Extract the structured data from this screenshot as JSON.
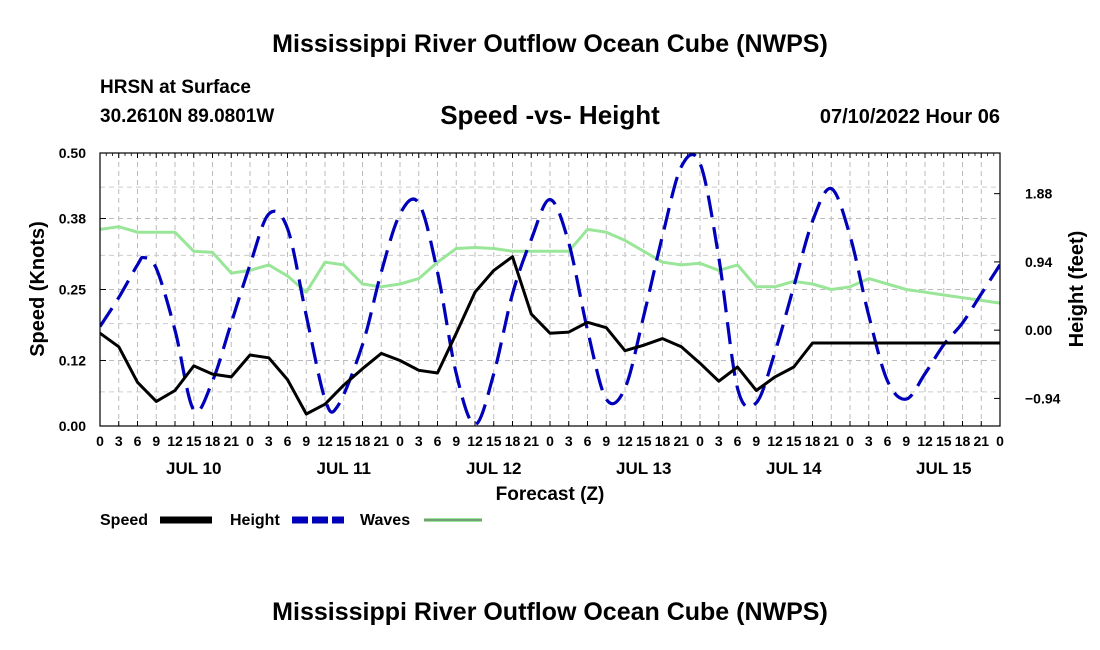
{
  "header": {
    "main_title": "Mississippi River Outflow Ocean Cube (NWPS)",
    "station_name": "HRSN at Surface",
    "station_coords": "30.2610N  89.0801W",
    "chart_title": "Speed -vs- Height",
    "run_time": "07/10/2022 Hour 06"
  },
  "footer": {
    "bottom_title": "Mississippi River Outflow Ocean Cube (NWPS)"
  },
  "chart_data": {
    "type": "line",
    "title": "Speed -vs- Height",
    "xlabel": "Forecast (Z)",
    "ylabel": "Speed (Knots)",
    "y2label": "Height (feet)",
    "xlim": [
      0,
      144
    ],
    "ylim": [
      0,
      0.5
    ],
    "y2lim": [
      -1.32,
      2.44
    ],
    "grid": true,
    "x_tick_labels": [
      "0",
      "3",
      "6",
      "9",
      "12",
      "15",
      "18",
      "21",
      "0",
      "3",
      "6",
      "9",
      "12",
      "15",
      "18",
      "21",
      "0",
      "3",
      "6",
      "9",
      "12",
      "15",
      "18",
      "21",
      "0",
      "3",
      "6",
      "9",
      "12",
      "15",
      "18",
      "21",
      "0",
      "3",
      "6",
      "9",
      "12",
      "15",
      "18",
      "21",
      "0",
      "3",
      "6",
      "9",
      "12",
      "15",
      "18",
      "21",
      "0"
    ],
    "day_labels": [
      "JUL 10",
      "JUL 11",
      "JUL 12",
      "JUL 13",
      "JUL 14",
      "JUL 15"
    ],
    "y_ticks": [
      0.0,
      0.12,
      0.25,
      0.38,
      0.5
    ],
    "y_tick_labels": [
      "0.00",
      "0.12",
      "0.25",
      "0.38",
      "0.50"
    ],
    "y2_ticks": [
      -0.94,
      0.0,
      0.94,
      1.88
    ],
    "y2_tick_labels": [
      "−0.94",
      "0.00",
      "0.94",
      "1.88"
    ],
    "legend": {
      "position": "bottom-left",
      "items": [
        {
          "name": "Speed",
          "color": "#000000",
          "dash": "solid"
        },
        {
          "name": "Height",
          "color": "#0000bb",
          "dash": "dashed"
        },
        {
          "name": "Waves",
          "color": "#99e699",
          "dash": "solid"
        }
      ]
    },
    "series": [
      {
        "name": "Speed",
        "axis": "left",
        "color": "#000000",
        "x": [
          0,
          3,
          6,
          9,
          12,
          15,
          18,
          21,
          24,
          27,
          30,
          33,
          36,
          39,
          42,
          45,
          48,
          51,
          54,
          57,
          60,
          63,
          66,
          69,
          72,
          75,
          78,
          81,
          84,
          87,
          90,
          93,
          96,
          99,
          102,
          105,
          108,
          111,
          114,
          117,
          120,
          123,
          126,
          129,
          132,
          135,
          144
        ],
        "y": [
          0.17,
          0.145,
          0.08,
          0.045,
          0.065,
          0.11,
          0.095,
          0.09,
          0.13,
          0.125,
          0.085,
          0.022,
          0.04,
          0.075,
          0.105,
          0.133,
          0.12,
          0.102,
          0.097,
          0.17,
          0.245,
          0.285,
          0.31,
          0.205,
          0.17,
          0.172,
          0.19,
          0.18,
          0.138,
          0.148,
          0.16,
          0.145,
          0.115,
          0.082,
          0.108,
          0.065,
          0.09,
          0.108,
          0.152,
          0.152,
          0.152,
          0.152,
          0.152,
          0.152,
          0.152,
          0.152,
          0.152
        ]
      },
      {
        "name": "Height",
        "axis": "right",
        "color": "#0000bb",
        "x": [
          0,
          3,
          6,
          7,
          9,
          12,
          15,
          18,
          21,
          24,
          27,
          30,
          33,
          36,
          38,
          42,
          45,
          48,
          51,
          54,
          57,
          60,
          63,
          66,
          69,
          72,
          75,
          78,
          81,
          84,
          87,
          90,
          93,
          96,
          99,
          102,
          105,
          108,
          111,
          114,
          117,
          120,
          123,
          126,
          129,
          132,
          135,
          138,
          141,
          144
        ],
        "y": [
          0.05,
          0.45,
          0.9,
          1.0,
          0.85,
          0.0,
          -1.1,
          -0.7,
          0.1,
          0.9,
          1.6,
          1.4,
          0.2,
          -0.95,
          -1.05,
          -0.2,
          0.8,
          1.6,
          1.75,
          0.8,
          -0.6,
          -1.3,
          -0.6,
          0.5,
          1.25,
          1.8,
          1.2,
          0.0,
          -0.95,
          -0.8,
          0.2,
          1.3,
          2.25,
          2.3,
          1.0,
          -0.8,
          -1.0,
          -0.3,
          0.6,
          1.5,
          1.95,
          1.3,
          0.2,
          -0.7,
          -0.95,
          -0.6,
          -0.2,
          0.1,
          0.5,
          0.9
        ]
      },
      {
        "name": "Waves",
        "axis": "left",
        "color": "#99e699",
        "x": [
          0,
          3,
          6,
          9,
          12,
          15,
          18,
          21,
          24,
          27,
          30,
          33,
          36,
          39,
          42,
          45,
          48,
          51,
          54,
          57,
          60,
          63,
          66,
          69,
          72,
          75,
          78,
          81,
          84,
          87,
          90,
          93,
          96,
          99,
          102,
          105,
          108,
          111,
          114,
          117,
          120,
          123,
          126,
          129,
          132,
          135,
          138,
          141,
          144
        ],
        "y": [
          0.36,
          0.365,
          0.355,
          0.355,
          0.355,
          0.32,
          0.318,
          0.28,
          0.285,
          0.295,
          0.275,
          0.245,
          0.3,
          0.295,
          0.26,
          0.255,
          0.26,
          0.27,
          0.3,
          0.325,
          0.327,
          0.325,
          0.32,
          0.32,
          0.32,
          0.32,
          0.36,
          0.355,
          0.34,
          0.32,
          0.3,
          0.295,
          0.298,
          0.285,
          0.295,
          0.255,
          0.255,
          0.265,
          0.26,
          0.25,
          0.255,
          0.27,
          0.26,
          0.25,
          0.245,
          0.24,
          0.235,
          0.23,
          0.225
        ]
      }
    ]
  }
}
